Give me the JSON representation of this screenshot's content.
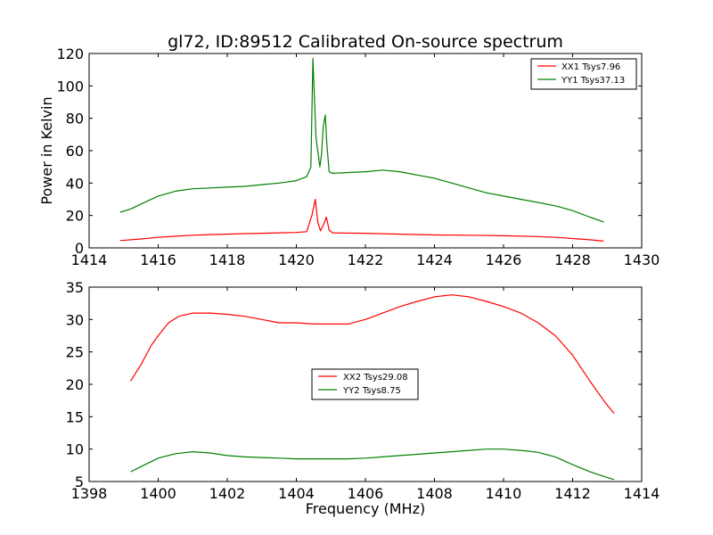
{
  "chart_data": [
    {
      "type": "line",
      "title": "gl72, ID:89512 Calibrated On-source spectrum",
      "xlabel": "",
      "ylabel": "Power in Kelvin",
      "xlim": [
        1414,
        1430
      ],
      "ylim": [
        0,
        120
      ],
      "xticks": [
        "1414",
        "1416",
        "1418",
        "1420",
        "1422",
        "1424",
        "1426",
        "1428",
        "1430"
      ],
      "yticks": [
        "0",
        "20",
        "40",
        "60",
        "80",
        "100",
        "120"
      ],
      "grid": false,
      "legend_position": "upper-right",
      "series": [
        {
          "name": "XX1 Tsys7.96",
          "color": "#ff0000",
          "x": [
            1414.9,
            1415.5,
            1416,
            1416.5,
            1417,
            1417.5,
            1418,
            1418.5,
            1419,
            1419.5,
            1420,
            1420.3,
            1420.45,
            1420.55,
            1420.62,
            1420.7,
            1420.78,
            1420.87,
            1420.95,
            1421.05,
            1421.3,
            1422,
            1423,
            1424,
            1425,
            1426,
            1427,
            1427.5,
            1428,
            1428.5,
            1428.9
          ],
          "y": [
            4.5,
            5.5,
            6.5,
            7.2,
            7.8,
            8.2,
            8.5,
            8.8,
            9.0,
            9.3,
            9.5,
            10.0,
            20,
            30,
            16,
            10.5,
            14,
            19,
            11,
            9.3,
            9.2,
            9.0,
            8.5,
            8.0,
            7.8,
            7.5,
            7.0,
            6.5,
            5.8,
            5.0,
            4.2
          ]
        },
        {
          "name": "YY1 Tsys37.13",
          "color": "#008000",
          "x": [
            1414.9,
            1415.2,
            1415.6,
            1416,
            1416.5,
            1417,
            1417.5,
            1418,
            1418.5,
            1419,
            1419.5,
            1420,
            1420.3,
            1420.42,
            1420.48,
            1420.52,
            1420.57,
            1420.62,
            1420.68,
            1420.73,
            1420.78,
            1420.84,
            1420.88,
            1420.95,
            1421.05,
            1421.5,
            1422,
            1422.5,
            1423,
            1423.5,
            1424,
            1424.5,
            1425,
            1425.5,
            1426,
            1426.5,
            1427,
            1427.5,
            1428,
            1428.5,
            1428.9
          ],
          "y": [
            22,
            24,
            28,
            32,
            35,
            36.5,
            37,
            37.5,
            38,
            39,
            40,
            41.5,
            44,
            50,
            117,
            95,
            68,
            60,
            50,
            58,
            75,
            82,
            65,
            47,
            46,
            46.5,
            47,
            48,
            47,
            45,
            43,
            40,
            37,
            34,
            32,
            30,
            28,
            26,
            23,
            19,
            16
          ]
        }
      ]
    },
    {
      "type": "line",
      "title": "",
      "xlabel": "Frequency (MHz)",
      "ylabel": "",
      "xlim": [
        1398,
        1414
      ],
      "ylim": [
        5,
        35
      ],
      "xticks": [
        "1398",
        "1400",
        "1402",
        "1404",
        "1406",
        "1408",
        "1410",
        "1412",
        "1414"
      ],
      "yticks": [
        "5",
        "10",
        "15",
        "20",
        "25",
        "30",
        "35"
      ],
      "grid": false,
      "legend_position": "center",
      "series": [
        {
          "name": "XX2 Tsys29.08",
          "color": "#ff0000",
          "x": [
            1399.2,
            1399.5,
            1399.8,
            1400,
            1400.3,
            1400.6,
            1401,
            1401.5,
            1402,
            1402.5,
            1403,
            1403.5,
            1404,
            1404.5,
            1405,
            1405.5,
            1406,
            1406.5,
            1407,
            1407.5,
            1408,
            1408.5,
            1409,
            1409.5,
            1410,
            1410.5,
            1411,
            1411.5,
            1412,
            1412.5,
            1412.9,
            1413.2
          ],
          "y": [
            20.5,
            23,
            26,
            27.5,
            29.5,
            30.5,
            31,
            31,
            30.8,
            30.5,
            30,
            29.5,
            29.5,
            29.3,
            29.3,
            29.3,
            30,
            31,
            32,
            32.8,
            33.5,
            33.8,
            33.5,
            32.8,
            32,
            31,
            29.5,
            27.5,
            24.5,
            20.5,
            17.5,
            15.5
          ]
        },
        {
          "name": "YY2 Tsys8.75",
          "color": "#008000",
          "x": [
            1399.2,
            1399.5,
            1400,
            1400.5,
            1401,
            1401.5,
            1402,
            1402.5,
            1403,
            1403.5,
            1404,
            1404.5,
            1405,
            1405.5,
            1406,
            1406.5,
            1407,
            1407.5,
            1408,
            1408.5,
            1409,
            1409.5,
            1410,
            1410.5,
            1411,
            1411.5,
            1412,
            1412.5,
            1413,
            1413.2
          ],
          "y": [
            6.5,
            7.3,
            8.6,
            9.3,
            9.6,
            9.4,
            9.0,
            8.8,
            8.7,
            8.6,
            8.5,
            8.5,
            8.5,
            8.5,
            8.6,
            8.8,
            9.0,
            9.2,
            9.4,
            9.6,
            9.8,
            10.0,
            10.0,
            9.8,
            9.5,
            8.8,
            7.6,
            6.5,
            5.6,
            5.3
          ]
        }
      ]
    }
  ]
}
